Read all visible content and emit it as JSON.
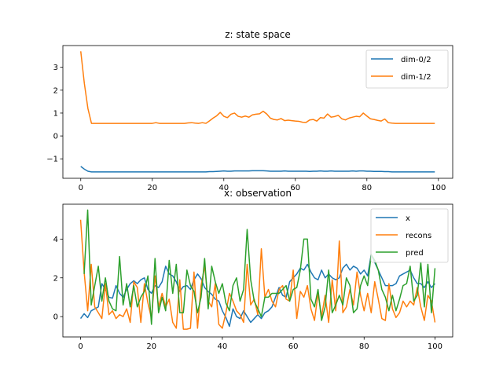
{
  "chart_data": [
    {
      "type": "line",
      "title": "z: state space",
      "xlabel": "",
      "ylabel": "",
      "xlim": [
        -5,
        104
      ],
      "ylim": [
        -1.85,
        3.95
      ],
      "xticks": [
        0,
        20,
        40,
        60,
        80,
        100
      ],
      "yticks": [
        -1,
        0,
        1,
        2,
        3
      ],
      "xtick_labels": [
        "0",
        "20",
        "40",
        "60",
        "80",
        "100"
      ],
      "ytick_labels": [
        "−1",
        "0",
        "1",
        "2",
        "3"
      ],
      "grid": false,
      "legend_position": "upper-right",
      "series": [
        {
          "name": "dim-0/2",
          "color": "#1f77b4",
          "values": [
            -1.33,
            -1.45,
            -1.54,
            -1.57,
            -1.57,
            -1.57,
            -1.57,
            -1.57,
            -1.57,
            -1.57,
            -1.57,
            -1.57,
            -1.57,
            -1.57,
            -1.57,
            -1.57,
            -1.57,
            -1.57,
            -1.57,
            -1.57,
            -1.57,
            -1.57,
            -1.57,
            -1.57,
            -1.57,
            -1.57,
            -1.57,
            -1.57,
            -1.57,
            -1.57,
            -1.57,
            -1.57,
            -1.57,
            -1.57,
            -1.57,
            -1.57,
            -1.56,
            -1.56,
            -1.55,
            -1.54,
            -1.53,
            -1.54,
            -1.54,
            -1.53,
            -1.53,
            -1.53,
            -1.53,
            -1.53,
            -1.52,
            -1.52,
            -1.52,
            -1.52,
            -1.53,
            -1.54,
            -1.54,
            -1.54,
            -1.54,
            -1.53,
            -1.54,
            -1.54,
            -1.54,
            -1.54,
            -1.54,
            -1.54,
            -1.55,
            -1.54,
            -1.54,
            -1.53,
            -1.54,
            -1.54,
            -1.53,
            -1.54,
            -1.54,
            -1.54,
            -1.54,
            -1.54,
            -1.53,
            -1.54,
            -1.53,
            -1.53,
            -1.54,
            -1.54,
            -1.55,
            -1.55,
            -1.55,
            -1.56,
            -1.56,
            -1.57,
            -1.57,
            -1.57,
            -1.57,
            -1.57,
            -1.57,
            -1.57,
            -1.57,
            -1.57,
            -1.57,
            -1.57,
            -1.57,
            -1.57
          ]
        },
        {
          "name": "dim-1/2",
          "color": "#ff7f0e",
          "values": [
            3.7,
            2.3,
            1.2,
            0.55,
            0.55,
            0.55,
            0.55,
            0.55,
            0.55,
            0.55,
            0.55,
            0.55,
            0.55,
            0.55,
            0.55,
            0.55,
            0.55,
            0.55,
            0.55,
            0.55,
            0.55,
            0.58,
            0.55,
            0.55,
            0.55,
            0.55,
            0.55,
            0.55,
            0.55,
            0.55,
            0.57,
            0.58,
            0.56,
            0.55,
            0.58,
            0.55,
            0.66,
            0.78,
            0.88,
            1.03,
            0.86,
            0.8,
            0.95,
            1.0,
            0.86,
            0.82,
            0.87,
            0.82,
            0.92,
            0.95,
            0.97,
            1.08,
            0.96,
            0.78,
            0.72,
            0.7,
            0.76,
            0.67,
            0.69,
            0.67,
            0.65,
            0.64,
            0.6,
            0.59,
            0.7,
            0.72,
            0.65,
            0.8,
            0.78,
            0.96,
            0.82,
            0.85,
            0.9,
            0.75,
            0.7,
            0.78,
            0.82,
            0.86,
            0.84,
            1.0,
            0.87,
            0.75,
            0.72,
            0.68,
            0.65,
            0.74,
            0.58,
            0.56,
            0.55,
            0.55,
            0.55,
            0.55,
            0.55,
            0.55,
            0.55,
            0.55,
            0.55,
            0.55,
            0.55,
            0.55
          ]
        }
      ]
    },
    {
      "type": "line",
      "title": "x: observation",
      "xlabel": "",
      "ylabel": "",
      "xlim": [
        -5,
        105
      ],
      "ylim": [
        -1.05,
        5.8
      ],
      "xticks": [
        0,
        20,
        40,
        60,
        80,
        100
      ],
      "yticks": [
        0,
        2,
        4
      ],
      "xtick_labels": [
        "0",
        "20",
        "40",
        "60",
        "80",
        "100"
      ],
      "ytick_labels": [
        "0",
        "2",
        "4"
      ],
      "grid": false,
      "legend_position": "upper-right",
      "series": [
        {
          "name": "x",
          "color": "#1f77b4",
          "values": [
            -0.1,
            0.15,
            -0.05,
            0.3,
            0.4,
            0.5,
            1.7,
            1.4,
            1.0,
            0.95,
            1.6,
            1.2,
            1.0,
            1.4,
            1.7,
            1.85,
            1.7,
            1.9,
            2.0,
            1.4,
            1.2,
            1.6,
            1.5,
            1.8,
            2.6,
            2.2,
            2.1,
            1.8,
            1.3,
            1.55,
            1.6,
            1.4,
            1.9,
            2.2,
            1.95,
            1.5,
            1.3,
            1.15,
            0.9,
            0.8,
            0.3,
            -0.05,
            -0.5,
            0.4,
            0.0,
            -0.1,
            0.3,
            0.0,
            -0.3,
            -0.1,
            0.1,
            -0.1,
            0.2,
            0.3,
            0.5,
            1.0,
            1.5,
            1.1,
            1.0,
            1.8,
            2.0,
            2.2,
            2.5,
            2.4,
            2.7,
            2.3,
            2.0,
            1.9,
            2.4,
            2.0,
            2.2,
            2.0,
            1.9,
            2.0,
            2.5,
            2.7,
            2.4,
            2.6,
            2.5,
            2.2,
            2.4,
            2.1,
            3.2,
            2.8,
            2.4,
            2.0,
            1.6,
            1.6,
            1.6,
            1.7,
            2.1,
            2.2,
            2.3,
            2.4,
            2.0,
            1.7,
            1.7,
            1.5,
            1.8,
            1.5,
            1.7
          ]
        },
        {
          "name": "recons",
          "color": "#ff7f0e",
          "values": [
            5.0,
            2.3,
            0.3,
            2.7,
            0.5,
            0.2,
            -0.1,
            1.7,
            0.1,
            0.3,
            -0.1,
            0.1,
            0.0,
            0.4,
            -0.3,
            1.8,
            1.5,
            -0.3,
            1.7,
            0.7,
            -0.1,
            2.1,
            0.5,
            1.2,
            0.5,
            0.9,
            -0.3,
            -0.6,
            1.9,
            -0.65,
            -0.65,
            -0.6,
            2.3,
            -0.6,
            1.6,
            2.6,
            0.8,
            0.5,
            1.7,
            -0.4,
            -0.6,
            0.2,
            1.2,
            0.8,
            0.3,
            0.1,
            -0.3,
            2.7,
            0.6,
            0.9,
            0.1,
            3.5,
            1.0,
            1.4,
            0.8,
            0.5,
            1.4,
            1.6,
            0.9,
            0.8,
            2.4,
            -0.1,
            1.3,
            1.0,
            1.6,
            0.4,
            -0.2,
            1.2,
            0.0,
            1.1,
            -0.3,
            1.9,
            0.3,
            3.9,
            0.2,
            0.5,
            1.4,
            0.6,
            2.3,
            1.1,
            0.3,
            1.2,
            0.2,
            1.8,
            0.9,
            -0.1,
            -0.2,
            1.7,
            0.4,
            -0.05,
            0.2,
            0.8,
            0.5,
            0.8,
            0.6,
            1.5,
            0.5,
            -0.2,
            1.1,
            0.8,
            -0.3
          ]
        },
        {
          "name": "pred",
          "color": "#2ca02c",
          "values": [
            null,
            2.2,
            5.5,
            0.6,
            1.6,
            2.6,
            0.8,
            2.0,
            0.8,
            0.4,
            0.3,
            3.1,
            0.6,
            1.7,
            0.5,
            1.6,
            0.5,
            1.0,
            1.3,
            2.1,
            -0.4,
            3.0,
            0.2,
            1.0,
            0.3,
            2.9,
            1.2,
            2.7,
            0.2,
            0.2,
            2.4,
            1.6,
            1.3,
            0.2,
            1.0,
            3.0,
            0.4,
            2.6,
            1.8,
            1.2,
            1.7,
            0.7,
            0.3,
            1.6,
            2.0,
            0.8,
            1.4,
            4.5,
            1.9,
            0.8,
            0.4,
            0.0,
            1.0,
            1.0,
            1.2,
            1.2,
            1.2,
            1.4,
            1.6,
            0.8,
            1.4,
            1.5,
            2.4,
            4.0,
            4.0,
            0.9,
            0.5,
            1.4,
            -0.2,
            0.5,
            2.4,
            0.2,
            0.6,
            1.1,
            0.6,
            2.0,
            1.6,
            0.2,
            0.4,
            1.6,
            2.1,
            1.6,
            3.2,
            2.9,
            2.4,
            1.4,
            1.0,
            0.3,
            1.1,
            0.3,
            0.9,
            1.6,
            1.7,
            2.6,
            0.8,
            1.1,
            2.8,
            0.5,
            2.7,
            0.2,
            2.5
          ]
        }
      ]
    }
  ]
}
